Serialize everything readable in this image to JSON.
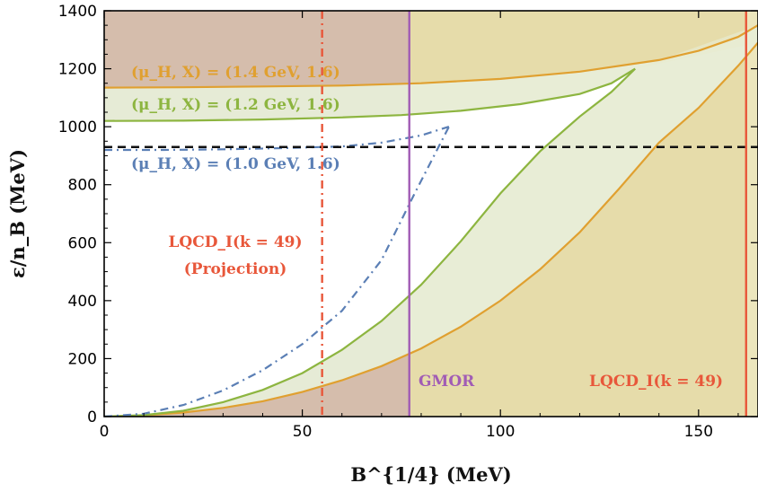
{
  "chart_data": {
    "type": "line",
    "xlabel": "B^{1/4} (MeV)",
    "ylabel": "ε/n_B (MeV)",
    "xlim": [
      0,
      165
    ],
    "ylim": [
      0,
      1400
    ],
    "xticks": [
      0,
      50,
      100,
      150
    ],
    "yticks": [
      0,
      200,
      400,
      600,
      800,
      1000,
      1200,
      1400
    ],
    "grid": false,
    "colors": {
      "mu14": "#e0a030",
      "mu12": "#8db540",
      "mu10": "#5b7fb5",
      "nucleon": "#111111",
      "lqcd": "#e8573a",
      "gmor": "#a15cb5",
      "region_lqcd_projection": "#cdb196",
      "region_gmor": "#ecdff0",
      "region_lqcd": "#e6dcaa",
      "band": "#e8efd9"
    },
    "series": [
      {
        "name": "(μ_H, X) = (1.4 GeV, 1.6)",
        "color_key": "mu14",
        "upper": [
          [
            0,
            1135
          ],
          [
            20,
            1136
          ],
          [
            40,
            1139
          ],
          [
            60,
            1142
          ],
          [
            80,
            1150
          ],
          [
            100,
            1165
          ],
          [
            120,
            1190
          ],
          [
            140,
            1230
          ],
          [
            150,
            1262
          ],
          [
            160,
            1310
          ],
          [
            165,
            1350
          ]
        ],
        "lower": [
          [
            0,
            0
          ],
          [
            10,
            4
          ],
          [
            20,
            14
          ],
          [
            30,
            30
          ],
          [
            40,
            53
          ],
          [
            50,
            85
          ],
          [
            60,
            125
          ],
          [
            70,
            174
          ],
          [
            80,
            235
          ],
          [
            90,
            310
          ],
          [
            100,
            400
          ],
          [
            110,
            508
          ],
          [
            120,
            636
          ],
          [
            130,
            787
          ],
          [
            140,
            945
          ],
          [
            150,
            1065
          ],
          [
            160,
            1210
          ],
          [
            165,
            1290
          ]
        ]
      },
      {
        "name": "(μ_H, X) = (1.2 GeV, 1.6)",
        "color_key": "mu12",
        "upper": [
          [
            0,
            1020
          ],
          [
            20,
            1021
          ],
          [
            40,
            1025
          ],
          [
            60,
            1032
          ],
          [
            75,
            1040
          ],
          [
            90,
            1055
          ],
          [
            105,
            1078
          ],
          [
            120,
            1113
          ],
          [
            128,
            1150
          ],
          [
            134,
            1200
          ]
        ],
        "lower": [
          [
            0,
            0
          ],
          [
            10,
            5
          ],
          [
            20,
            20
          ],
          [
            30,
            50
          ],
          [
            40,
            92
          ],
          [
            50,
            150
          ],
          [
            60,
            230
          ],
          [
            70,
            330
          ],
          [
            80,
            455
          ],
          [
            90,
            605
          ],
          [
            100,
            770
          ],
          [
            110,
            915
          ],
          [
            120,
            1035
          ],
          [
            128,
            1120
          ],
          [
            134,
            1200
          ]
        ]
      },
      {
        "name": "(μ_H, X) = (1.0 GeV, 1.6)",
        "color_key": "mu10",
        "dash": "dash-dot",
        "upper": [
          [
            0,
            920
          ],
          [
            15,
            920
          ],
          [
            30,
            922
          ],
          [
            45,
            926
          ],
          [
            60,
            932
          ],
          [
            70,
            945
          ],
          [
            80,
            970
          ],
          [
            87,
            1000
          ]
        ],
        "lower": [
          [
            0,
            0
          ],
          [
            10,
            10
          ],
          [
            20,
            40
          ],
          [
            30,
            90
          ],
          [
            40,
            160
          ],
          [
            50,
            250
          ],
          [
            60,
            365
          ],
          [
            70,
            540
          ],
          [
            78,
            760
          ],
          [
            84,
            920
          ],
          [
            87,
            1000
          ]
        ]
      }
    ],
    "reference_lines": [
      {
        "type": "horizontal",
        "y": 930,
        "style": "dashed",
        "color_key": "nucleon"
      },
      {
        "type": "vertical",
        "x": 55,
        "style": "dash-dot",
        "color_key": "lqcd"
      },
      {
        "type": "vertical",
        "x": 77,
        "style": "solid",
        "color_key": "gmor"
      },
      {
        "type": "vertical",
        "x": 162,
        "style": "solid",
        "color_key": "lqcd"
      }
    ],
    "annotations": {
      "mu14": "(μ_H, X) = (1.4 GeV, 1.6)",
      "mu12": "(μ_H, X) = (1.2 GeV, 1.6)",
      "mu10": "(μ_H, X) = (1.0 GeV, 1.6)",
      "lqcd_projection_line1": "LQCD_I(k = 49)",
      "lqcd_projection_line2": "(Projection)",
      "gmor": "GMOR",
      "lqcd": "LQCD_I(k = 49)"
    }
  }
}
